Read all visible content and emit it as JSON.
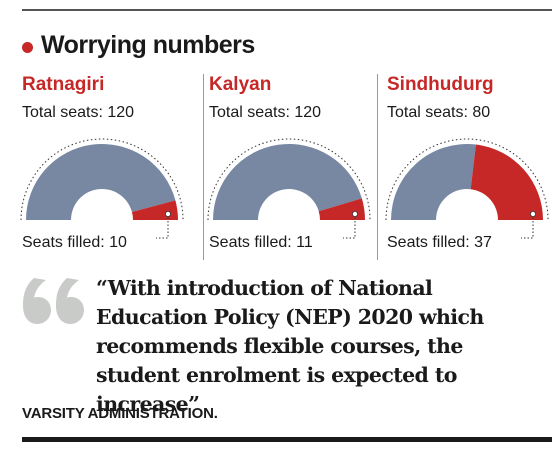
{
  "heading": "Worrying numbers",
  "colors": {
    "accent": "#c62828",
    "unfilled": "#7888a3",
    "filled": "#c62828"
  },
  "chart_data": [
    {
      "type": "pie",
      "subtype": "semi-donut",
      "title": "Ratnagiri",
      "total_label": "Total seats: 120",
      "filled_label": "Seats filled: 10",
      "total": 120,
      "filled": 10
    },
    {
      "type": "pie",
      "subtype": "semi-donut",
      "title": "Kalyan",
      "total_label": "Total seats: 120",
      "filled_label": "Seats filled: 11",
      "total": 120,
      "filled": 11
    },
    {
      "type": "pie",
      "subtype": "semi-donut",
      "title": "Sindhudurg",
      "total_label": "Total seats: 80",
      "filled_label": "Seats filled: 37",
      "total": 80,
      "filled": 37
    }
  ],
  "quote": {
    "text": "“With introduction of National Education Policy (NEP) 2020 which recommends flexible courses, the student enrolment is expected to increase”",
    "source": "VARSITY ADMINISTRATION."
  }
}
